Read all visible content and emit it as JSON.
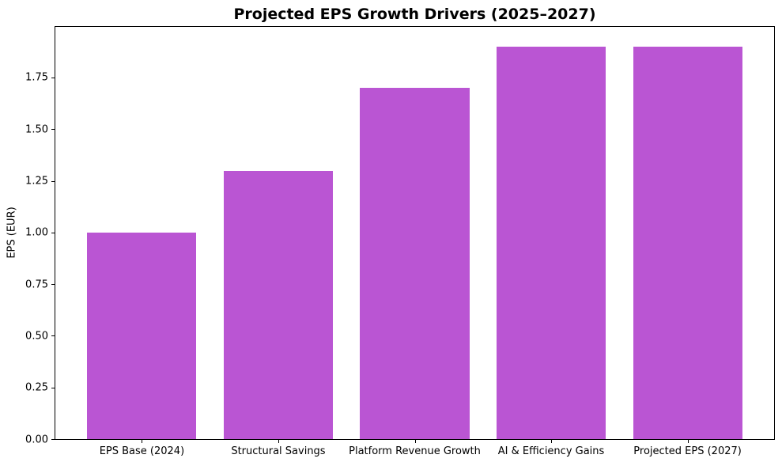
{
  "chart_data": {
    "type": "bar",
    "title": "Projected EPS Growth Drivers (2025–2027)",
    "xlabel": "",
    "ylabel": "EPS (EUR)",
    "categories": [
      "EPS Base (2024)",
      "Structural Savings",
      "Platform Revenue Growth",
      "AI & Efficiency Gains",
      "Projected EPS (2027)"
    ],
    "values": [
      1.0,
      1.3,
      1.7,
      1.9,
      1.9
    ],
    "ylim": [
      0,
      1.995
    ],
    "yticks": [
      0.0,
      0.25,
      0.5,
      0.75,
      1.0,
      1.25,
      1.5,
      1.75
    ],
    "ytick_labels": [
      "0.00",
      "0.25",
      "0.50",
      "0.75",
      "1.00",
      "1.25",
      "1.50",
      "1.75"
    ],
    "grid": false,
    "legend": null,
    "bar_color": "#BA55D3",
    "spine_color": "#000000",
    "background_color": "#FFFFFF"
  }
}
